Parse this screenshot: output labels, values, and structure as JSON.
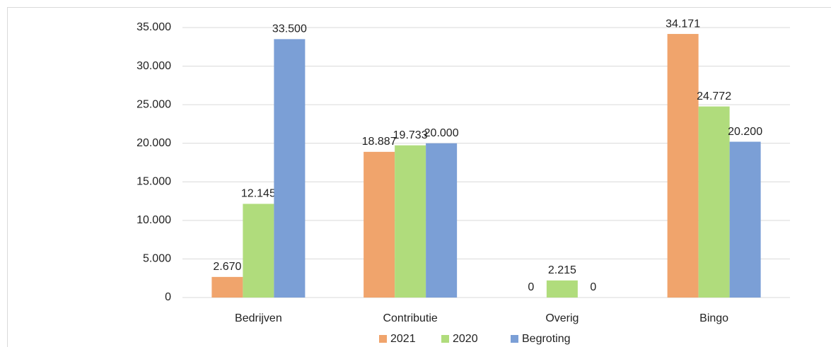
{
  "chart_data": {
    "type": "bar",
    "categories": [
      "Bedrijven",
      "Contributie",
      "Overig",
      "Bingo"
    ],
    "series": [
      {
        "name": "2021",
        "color": "#f0a46c",
        "values": [
          2670,
          18887,
          0,
          34171
        ],
        "value_labels": [
          "2.670",
          "18.887",
          "0",
          "34.171"
        ]
      },
      {
        "name": "2020",
        "color": "#b0dc7c",
        "values": [
          12145,
          19733,
          2215,
          24772
        ],
        "value_labels": [
          "12.145",
          "19.733",
          "2.215",
          "24.772"
        ]
      },
      {
        "name": "Begroting",
        "color": "#7b9fd6",
        "values": [
          33500,
          20000,
          0,
          20200
        ],
        "value_labels": [
          "33.500",
          "20.000",
          "0",
          "20.200"
        ]
      }
    ],
    "ylim": [
      0,
      35000
    ],
    "yticks": [
      0,
      {
        "value": 5000,
        "label": "5.000"
      },
      {
        "value": 10000,
        "label": "10.000"
      },
      {
        "value": 15000,
        "label": "15.000"
      },
      {
        "value": 20000,
        "label": "20.000"
      },
      {
        "value": 25000,
        "label": "25.000"
      },
      {
        "value": 30000,
        "label": "30.000"
      },
      {
        "value": 35000,
        "label": "35.000"
      }
    ],
    "grid": true,
    "legend": "bottom"
  }
}
